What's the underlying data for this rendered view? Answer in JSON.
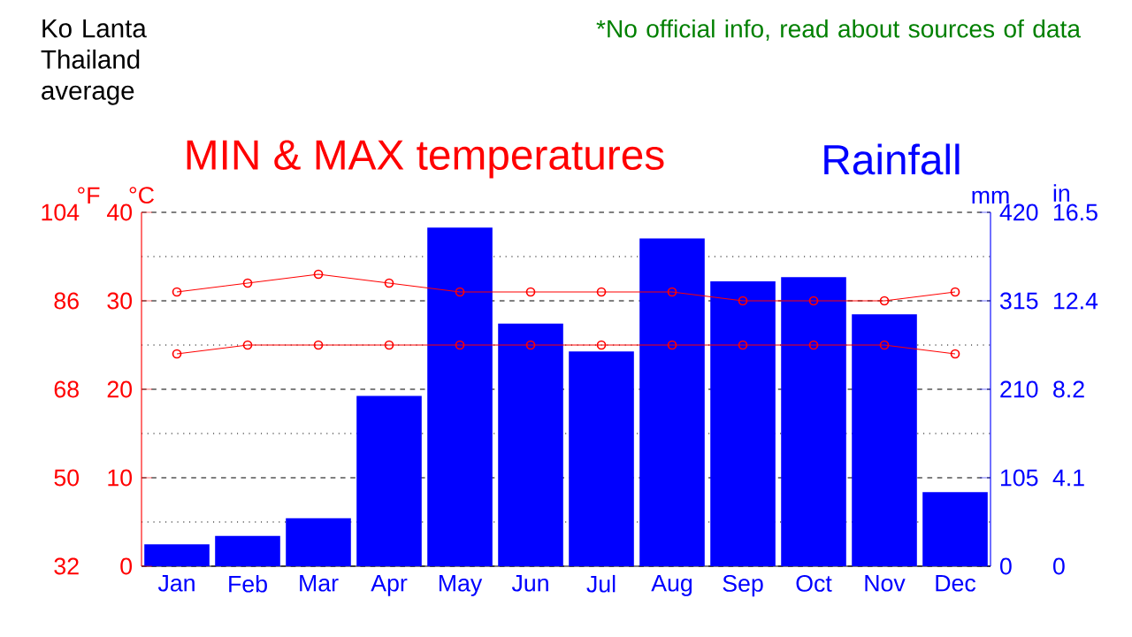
{
  "chart_data": {
    "type": "bar",
    "title": "Ko Lanta Thailand average",
    "categories": [
      "Jan",
      "Feb",
      "Mar",
      "Apr",
      "May",
      "Jun",
      "Jul",
      "Aug",
      "Sep",
      "Oct",
      "Nov",
      "Dec"
    ],
    "series": [
      {
        "name": "Rainfall",
        "axis": "y2",
        "color": "#0000ff",
        "values": [
          26,
          36,
          57,
          202,
          402,
          288,
          255,
          389,
          338,
          343,
          299,
          88
        ]
      },
      {
        "type": "line",
        "color": "#ff0000",
        "values": [
          31,
          32,
          33,
          32,
          31,
          31,
          31,
          31,
          30,
          30,
          30,
          31
        ]
      },
      {
        "type": "line",
        "color": "#ff0000",
        "values": [
          24,
          25,
          25,
          25,
          25,
          25,
          25,
          25,
          25,
          25,
          25,
          24
        ]
      }
    ],
    "ylabel": "°C",
    "ylim": [
      0,
      40
    ],
    "yticks": [
      0,
      10,
      20,
      30,
      40
    ],
    "y2label": "mm",
    "y2lim": [
      0,
      420
    ],
    "y2ticks": [
      0,
      105,
      210,
      315,
      420
    ],
    "y3label": "°F",
    "y3lim": [
      32,
      104
    ],
    "y3ticks": [
      32,
      50,
      68,
      86,
      104
    ],
    "annotations": [
      "MIN & MAX temperatures",
      "*No official info, read about sources of data",
      "in",
      "0",
      "4.1",
      "8.2",
      "12.4",
      "16.5"
    ],
    "grid": "y",
    "marker": "circle",
    "line_style": "solid"
  }
}
